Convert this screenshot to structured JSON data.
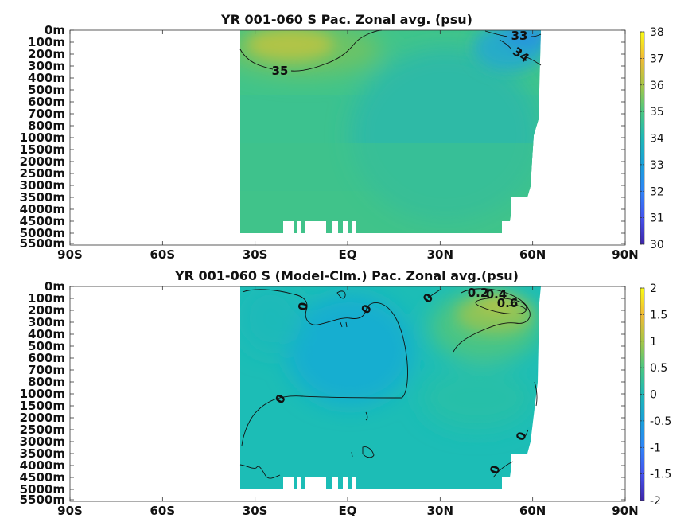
{
  "chart_data": [
    {
      "type": "heatmap",
      "title": "YR 001-060 S Pac. Zonal avg. (psu)",
      "x_ticks": [
        "90S",
        "60S",
        "30S",
        "EQ",
        "30N",
        "60N",
        "90N"
      ],
      "x_values": [
        -90,
        -60,
        -30,
        0,
        30,
        60,
        90
      ],
      "y_ticks": [
        "0m",
        "100m",
        "200m",
        "300m",
        "400m",
        "500m",
        "600m",
        "700m",
        "800m",
        "1000m",
        "1500m",
        "2000m",
        "2500m",
        "3000m",
        "3500m",
        "4000m",
        "4500m",
        "5000m",
        "5500m"
      ],
      "data_lat_range": [
        -34,
        61
      ],
      "colorbar": {
        "ticks": [
          "30",
          "31",
          "32",
          "33",
          "34",
          "35",
          "36",
          "37",
          "38"
        ],
        "range": [
          30,
          38
        ]
      },
      "contour_labels": [
        "33",
        "34",
        "35"
      ],
      "colormap": "parula"
    },
    {
      "type": "heatmap",
      "title": "YR 001-060 S (Model-Clm.) Pac. Zonal avg.(psu)",
      "x_ticks": [
        "90S",
        "60S",
        "30S",
        "EQ",
        "30N",
        "60N",
        "90N"
      ],
      "x_values": [
        -90,
        -60,
        -30,
        0,
        30,
        60,
        90
      ],
      "y_ticks": [
        "0m",
        "100m",
        "200m",
        "300m",
        "400m",
        "500m",
        "600m",
        "700m",
        "800m",
        "1000m",
        "1500m",
        "2000m",
        "2500m",
        "3000m",
        "3500m",
        "4000m",
        "4500m",
        "5000m",
        "5500m"
      ],
      "data_lat_range": [
        -34,
        61
      ],
      "colorbar": {
        "ticks": [
          "-2",
          "-1.5",
          "-1",
          "-0.5",
          "0",
          "0.5",
          "1",
          "1.5",
          "2"
        ],
        "range": [
          -2,
          2
        ]
      },
      "contour_labels": [
        "0",
        "0",
        "0",
        "0.2",
        "0.4",
        "0.6",
        "0",
        "0",
        "0"
      ],
      "colormap": "parula"
    }
  ]
}
